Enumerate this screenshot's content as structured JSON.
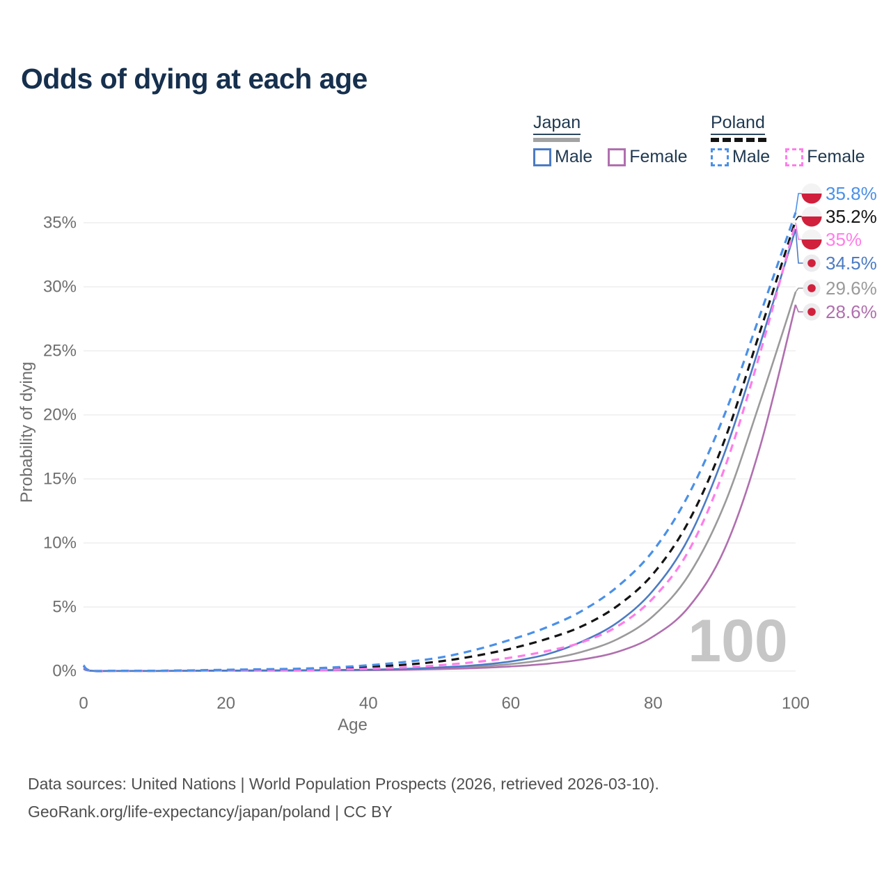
{
  "title": "Odds of dying at each age",
  "legend": {
    "groups": [
      {
        "name": "Japan",
        "line_style": "solid",
        "bar_color": "#a3a3a3",
        "items": [
          {
            "label": "Male",
            "color": "#4b7bc4"
          },
          {
            "label": "Female",
            "color": "#b06fae"
          }
        ]
      },
      {
        "name": "Poland",
        "line_style": "dashed",
        "bar_color": "#141414",
        "items": [
          {
            "label": "Male",
            "color": "#4a90e8"
          },
          {
            "label": "Female",
            "color": "#ff7de9"
          }
        ]
      }
    ]
  },
  "chart_data": {
    "type": "line",
    "title": "Odds of dying at each age",
    "xlabel": "Age",
    "ylabel": "Probability of dying",
    "x_ticks": [
      0,
      20,
      40,
      60,
      80,
      100
    ],
    "y_tick_values": [
      0,
      5,
      10,
      15,
      20,
      25,
      30,
      35
    ],
    "y_tick_labels": [
      "0%",
      "5%",
      "10%",
      "15%",
      "20%",
      "25%",
      "30%",
      "35%"
    ],
    "xlim": [
      0,
      100
    ],
    "ylim": [
      0,
      37.5
    ],
    "grid": true,
    "legend_position": "top-right",
    "age_cursor_label": "100",
    "ages": [
      0,
      1,
      5,
      10,
      15,
      20,
      25,
      30,
      35,
      40,
      45,
      50,
      55,
      60,
      65,
      70,
      75,
      80,
      85,
      90,
      95,
      100
    ],
    "series": [
      {
        "id": "japan-total",
        "name": "Japan",
        "sex": "Both sexes",
        "color": "#9a9a9a",
        "dashed": false,
        "values": [
          0.19,
          0.02,
          0.01,
          0.01,
          0.02,
          0.03,
          0.04,
          0.05,
          0.07,
          0.09,
          0.13,
          0.21,
          0.34,
          0.55,
          0.9,
          1.5,
          2.5,
          4.3,
          7.5,
          13.0,
          21.0,
          29.6
        ]
      },
      {
        "id": "japan-female",
        "name": "Japan Female",
        "sex": "Female",
        "color": "#b06fae",
        "dashed": false,
        "values": [
          0.17,
          0.02,
          0.01,
          0.01,
          0.01,
          0.02,
          0.02,
          0.03,
          0.05,
          0.07,
          0.1,
          0.15,
          0.23,
          0.36,
          0.56,
          0.9,
          1.5,
          2.7,
          5.0,
          9.5,
          17.5,
          28.6
        ]
      },
      {
        "id": "japan-male",
        "name": "Japan Male",
        "sex": "Male",
        "color": "#4b7bc4",
        "dashed": false,
        "values": [
          0.2,
          0.02,
          0.01,
          0.01,
          0.02,
          0.04,
          0.05,
          0.06,
          0.08,
          0.11,
          0.17,
          0.28,
          0.45,
          0.75,
          1.3,
          2.3,
          3.8,
          6.3,
          10.4,
          17.0,
          25.5,
          34.5
        ]
      },
      {
        "id": "poland-total",
        "name": "Poland",
        "sex": "Both sexes",
        "color": "#141414",
        "dashed": true,
        "values": [
          0.42,
          0.03,
          0.02,
          0.02,
          0.04,
          0.07,
          0.1,
          0.13,
          0.2,
          0.32,
          0.49,
          0.75,
          1.18,
          1.75,
          2.5,
          3.5,
          5.1,
          7.6,
          11.7,
          18.0,
          26.5,
          35.2
        ]
      },
      {
        "id": "poland-female",
        "name": "Poland Female",
        "sex": "Female",
        "color": "#ff7de9",
        "dashed": true,
        "values": [
          0.38,
          0.03,
          0.015,
          0.015,
          0.02,
          0.04,
          0.05,
          0.07,
          0.11,
          0.18,
          0.28,
          0.45,
          0.7,
          1.05,
          1.55,
          2.25,
          3.5,
          5.7,
          9.4,
          15.8,
          24.8,
          35.0
        ]
      },
      {
        "id": "poland-male",
        "name": "Poland Male",
        "sex": "Male",
        "color": "#4a90e8",
        "dashed": true,
        "values": [
          0.45,
          0.03,
          0.02,
          0.02,
          0.05,
          0.1,
          0.14,
          0.18,
          0.28,
          0.45,
          0.7,
          1.05,
          1.65,
          2.45,
          3.4,
          4.7,
          6.6,
          9.4,
          13.8,
          20.0,
          27.8,
          35.8
        ]
      }
    ],
    "end_labels": [
      {
        "text": "35.8%",
        "series": "poland-male",
        "flag": "poland",
        "color": "#4a90e8",
        "value": 35.8
      },
      {
        "text": "35.2%",
        "series": "poland-total",
        "flag": "poland",
        "color": "#141414",
        "value": 35.2
      },
      {
        "text": "35%",
        "series": "poland-female",
        "flag": "poland",
        "color": "#ff7de9",
        "value": 35.0
      },
      {
        "text": "34.5%",
        "series": "japan-male",
        "flag": "japan",
        "color": "#4b7bc4",
        "value": 34.5
      },
      {
        "text": "29.6%",
        "series": "japan-total",
        "flag": "japan",
        "color": "#9a9a9a",
        "value": 29.6
      },
      {
        "text": "28.6%",
        "series": "japan-female",
        "flag": "japan",
        "color": "#b06fae",
        "value": 28.6
      }
    ],
    "flag_red": "#d0203c"
  },
  "footer": {
    "line1": "Data sources: United Nations | World Population Prospects (2026, retrieved 2026-03-10).",
    "line2": "GeoRank.org/life-expectancy/japan/poland | CC BY"
  }
}
